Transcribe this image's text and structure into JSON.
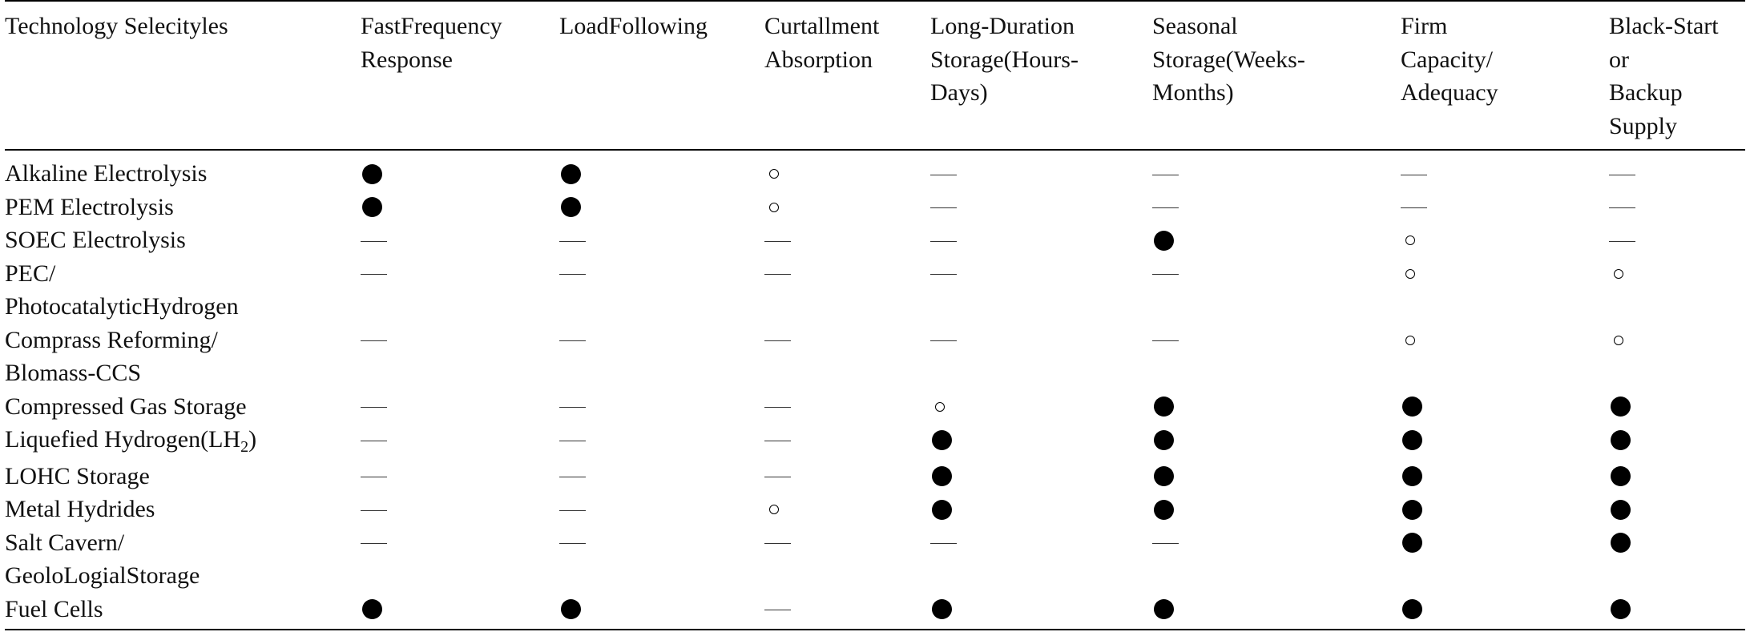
{
  "table": {
    "headers": [
      {
        "lines": [
          "Technology Selecityles"
        ]
      },
      {
        "lines": [
          "FastFrequency",
          "Response"
        ]
      },
      {
        "lines": [
          "LoadFollowing"
        ]
      },
      {
        "lines": [
          "Curtallment",
          "Absorption"
        ]
      },
      {
        "lines": [
          "Long-Duration",
          "Storage(Hours-",
          "Days)"
        ]
      },
      {
        "lines": [
          "Seasonal",
          "Storage(Weeks-",
          "Months)"
        ]
      },
      {
        "lines": [
          "Firm",
          "Capacity/",
          "Adequacy"
        ]
      },
      {
        "lines": [
          "Black-Start",
          "or",
          "Backup",
          "Supply"
        ]
      }
    ],
    "legend_glyphs": {
      "full": "large-filled-circle",
      "partial": "small-open-circle",
      "none": "em-dash"
    },
    "rows": [
      {
        "label_lines": [
          "Alkaline Electrolysis"
        ],
        "marks": [
          "full",
          "full",
          "partial",
          "none",
          "none",
          "none",
          "none"
        ]
      },
      {
        "label_lines": [
          "PEM Electrolysis"
        ],
        "marks": [
          "full",
          "full",
          "partial",
          "none",
          "none",
          "none",
          "none"
        ]
      },
      {
        "label_lines": [
          "SOEC Electrolysis"
        ],
        "marks": [
          "none",
          "none",
          "none",
          "none",
          "full",
          "partial",
          "none"
        ]
      },
      {
        "label_lines": [
          "PEC/",
          "PhotocatalyticHydrogen"
        ],
        "marks": [
          "none",
          "none",
          "none",
          "none",
          "none",
          "partial",
          "partial"
        ]
      },
      {
        "label_lines": [
          "Comprass Reforming/",
          "Blomass-CCS"
        ],
        "marks": [
          "none",
          "none",
          "none",
          "none",
          "none",
          "partial",
          "partial"
        ]
      },
      {
        "label_lines": [
          "Compressed Gas Storage"
        ],
        "marks": [
          "none",
          "none",
          "none",
          "partial",
          "full",
          "full",
          "full"
        ]
      },
      {
        "label_lines": [
          "Liquefied Hydrogen(LH"
        ],
        "label_sub": "2",
        "label_suffix": ")",
        "marks": [
          "none",
          "none",
          "none",
          "full",
          "full",
          "full",
          "full"
        ]
      },
      {
        "label_lines": [
          "LOHC Storage"
        ],
        "marks": [
          "none",
          "none",
          "none",
          "full",
          "full",
          "full",
          "full"
        ]
      },
      {
        "label_lines": [
          "Metal Hydrides"
        ],
        "marks": [
          "none",
          "none",
          "partial",
          "full",
          "full",
          "full",
          "full"
        ]
      },
      {
        "label_lines": [
          "Salt Cavern/",
          "GeoloLogialStorage"
        ],
        "marks": [
          "none",
          "none",
          "none",
          "none",
          "none",
          "full",
          "full"
        ]
      },
      {
        "label_lines": [
          "Fuel Cells"
        ],
        "marks": [
          "full",
          "full",
          "none",
          "full",
          "full",
          "full",
          "full"
        ]
      }
    ]
  }
}
